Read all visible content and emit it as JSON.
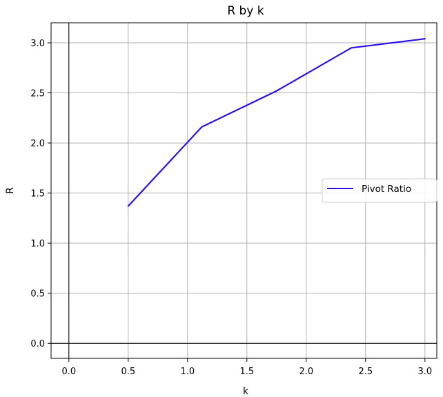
{
  "chart_data": {
    "type": "line",
    "title": "R by k",
    "xlabel": "k",
    "ylabel": "R",
    "xlim": [
      -0.15,
      3.1
    ],
    "ylim": [
      -0.15,
      3.2
    ],
    "xticks": [
      0.0,
      0.5,
      1.0,
      1.5,
      2.0,
      2.5,
      3.0
    ],
    "xtick_labels": [
      "0.0",
      "0.5",
      "1.0",
      "1.5",
      "2.0",
      "2.5",
      "3.0"
    ],
    "yticks": [
      0.0,
      0.5,
      1.0,
      1.5,
      2.0,
      2.5,
      3.0
    ],
    "ytick_labels": [
      "0.0",
      "0.5",
      "1.0",
      "1.5",
      "2.0",
      "2.5",
      "3.0"
    ],
    "grid": true,
    "zero_lines": true,
    "legend_position": "center-right",
    "series": [
      {
        "name": "Pivot Ratio",
        "color": "#2a10e6",
        "x": [
          0.5,
          1.12,
          1.75,
          2.38,
          3.0
        ],
        "y": [
          1.37,
          2.16,
          2.52,
          2.95,
          3.04
        ]
      }
    ]
  }
}
